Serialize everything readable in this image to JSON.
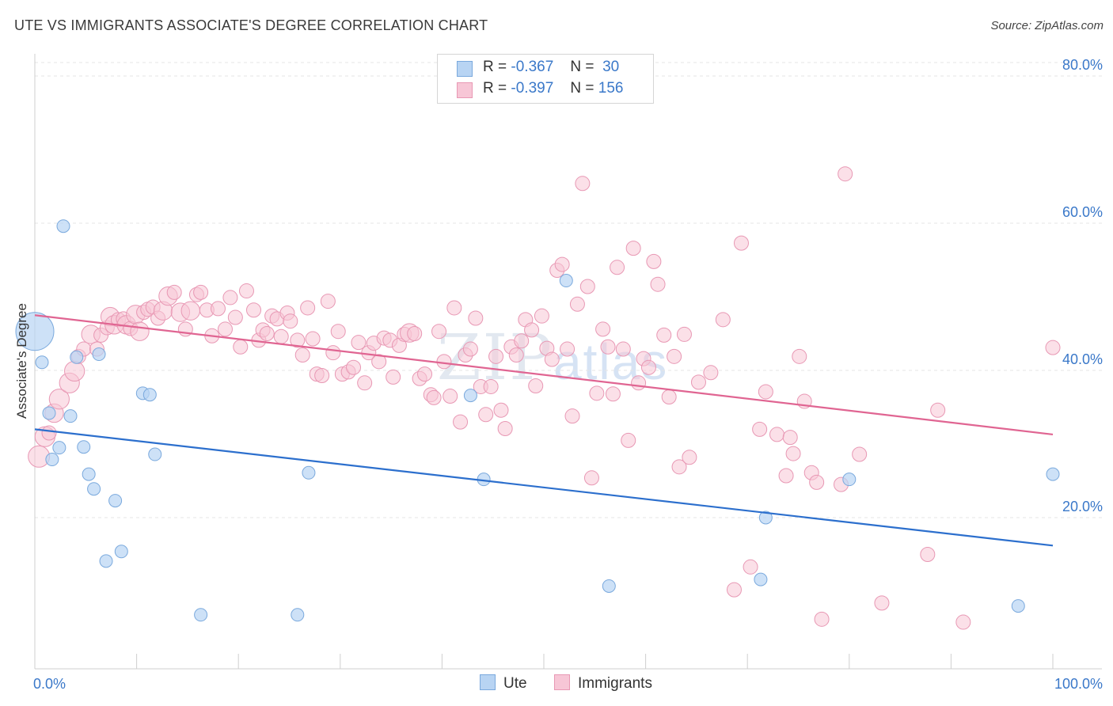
{
  "title": "UTE VS IMMIGRANTS ASSOCIATE'S DEGREE CORRELATION CHART",
  "source": "Source: ZipAtlas.com",
  "watermark": {
    "zip": "ZIP",
    "atlas": "atlas"
  },
  "legend": {
    "r_label": "R =",
    "n_label": "N =",
    "ute": {
      "r": "-0.367",
      "n": "30"
    },
    "immigrants": {
      "r": "-0.397",
      "n": "156"
    }
  },
  "bottom_legend": {
    "ute": "Ute",
    "immigrants": "Immigrants"
  },
  "colors": {
    "ute_fill": "#b8d4f3",
    "ute_stroke": "#7aa9dd",
    "ute_line": "#2c6fcd",
    "imm_fill": "#f7c6d6",
    "imm_stroke": "#e898b4",
    "imm_line": "#e06592",
    "tick_label": "#3a78c9",
    "grid": "#e4e4e4"
  },
  "chart_data": {
    "type": "scatter",
    "title": "UTE VS IMMIGRANTS ASSOCIATE'S DEGREE CORRELATION CHART",
    "xlabel": "",
    "ylabel": "Associate's Degree",
    "xlim": [
      0,
      100
    ],
    "ylim": [
      0,
      82
    ],
    "x_tick_labels": [
      "0.0%",
      "100.0%"
    ],
    "y_ticks": [
      20,
      40,
      60,
      80
    ],
    "y_tick_labels": [
      "20.0%",
      "40.0%",
      "60.0%",
      "80.0%"
    ],
    "grid": true,
    "legend_position": "top-center",
    "series": [
      {
        "name": "Ute",
        "R": -0.367,
        "N": 30,
        "trend": {
          "x": [
            0,
            100
          ],
          "y": [
            32.0,
            16.2
          ]
        },
        "points": [
          {
            "x": 0,
            "y": 45.3,
            "s": 3
          },
          {
            "x": 0.7,
            "y": 41.1,
            "s": 1
          },
          {
            "x": 2.8,
            "y": 59.6,
            "s": 1
          },
          {
            "x": 1.4,
            "y": 34.2,
            "s": 1
          },
          {
            "x": 3.5,
            "y": 33.8,
            "s": 1
          },
          {
            "x": 2.4,
            "y": 29.5,
            "s": 1
          },
          {
            "x": 1.7,
            "y": 27.9,
            "s": 1
          },
          {
            "x": 4.1,
            "y": 41.8,
            "s": 1
          },
          {
            "x": 6.3,
            "y": 42.2,
            "s": 1
          },
          {
            "x": 4.8,
            "y": 29.6,
            "s": 1
          },
          {
            "x": 5.3,
            "y": 25.9,
            "s": 1
          },
          {
            "x": 5.8,
            "y": 23.9,
            "s": 1
          },
          {
            "x": 7.9,
            "y": 22.3,
            "s": 1
          },
          {
            "x": 10.6,
            "y": 36.9,
            "s": 1
          },
          {
            "x": 11.3,
            "y": 36.7,
            "s": 1
          },
          {
            "x": 11.8,
            "y": 28.6,
            "s": 1
          },
          {
            "x": 7.0,
            "y": 14.1,
            "s": 1
          },
          {
            "x": 8.5,
            "y": 15.4,
            "s": 1
          },
          {
            "x": 16.3,
            "y": 6.8,
            "s": 1
          },
          {
            "x": 25.8,
            "y": 6.8,
            "s": 1
          },
          {
            "x": 26.9,
            "y": 26.1,
            "s": 1
          },
          {
            "x": 42.8,
            "y": 36.6,
            "s": 1
          },
          {
            "x": 44.1,
            "y": 25.2,
            "s": 1
          },
          {
            "x": 52.2,
            "y": 52.2,
            "s": 1
          },
          {
            "x": 56.4,
            "y": 10.7,
            "s": 1
          },
          {
            "x": 71.3,
            "y": 11.6,
            "s": 1
          },
          {
            "x": 71.8,
            "y": 20.0,
            "s": 1
          },
          {
            "x": 80.0,
            "y": 25.2,
            "s": 1
          },
          {
            "x": 96.6,
            "y": 8.0,
            "s": 1
          },
          {
            "x": 100,
            "y": 25.9,
            "s": 1
          }
        ]
      },
      {
        "name": "Immigrants",
        "R": -0.397,
        "N": 156,
        "trend": {
          "x": [
            0,
            100
          ],
          "y": [
            47.5,
            31.3
          ]
        },
        "points": [
          {
            "x": 0.4,
            "y": 28.3,
            "s": 1.5
          },
          {
            "x": 1.0,
            "y": 31.0,
            "s": 1.4
          },
          {
            "x": 1.4,
            "y": 31.5,
            "s": 1
          },
          {
            "x": 1.9,
            "y": 34.2,
            "s": 1.3
          },
          {
            "x": 2.4,
            "y": 36.1,
            "s": 1.4
          },
          {
            "x": 3.4,
            "y": 38.3,
            "s": 1.4
          },
          {
            "x": 3.9,
            "y": 39.9,
            "s": 1.4
          },
          {
            "x": 4.3,
            "y": 41.9,
            "s": 1
          },
          {
            "x": 4.8,
            "y": 42.9,
            "s": 1
          },
          {
            "x": 5.5,
            "y": 44.9,
            "s": 1.3
          },
          {
            "x": 6.1,
            "y": 42.9,
            "s": 1
          },
          {
            "x": 6.5,
            "y": 44.8,
            "s": 1
          },
          {
            "x": 7.1,
            "y": 45.8,
            "s": 1
          },
          {
            "x": 7.4,
            "y": 47.3,
            "s": 1.3
          },
          {
            "x": 7.8,
            "y": 46.2,
            "s": 1.3
          },
          {
            "x": 8.2,
            "y": 46.9,
            "s": 1
          },
          {
            "x": 8.7,
            "y": 47.0,
            "s": 1
          },
          {
            "x": 9.0,
            "y": 46.2,
            "s": 1.3
          },
          {
            "x": 9.4,
            "y": 45.7,
            "s": 1
          },
          {
            "x": 9.9,
            "y": 47.6,
            "s": 1.3
          },
          {
            "x": 10.3,
            "y": 45.3,
            "s": 1.3
          },
          {
            "x": 10.7,
            "y": 47.9,
            "s": 1
          },
          {
            "x": 11.1,
            "y": 48.3,
            "s": 1
          },
          {
            "x": 11.6,
            "y": 48.6,
            "s": 1
          },
          {
            "x": 12.1,
            "y": 47.1,
            "s": 1
          },
          {
            "x": 12.6,
            "y": 48.1,
            "s": 1.3
          },
          {
            "x": 13.1,
            "y": 50.1,
            "s": 1.3
          },
          {
            "x": 13.7,
            "y": 50.6,
            "s": 1
          },
          {
            "x": 14.3,
            "y": 47.9,
            "s": 1.3
          },
          {
            "x": 14.8,
            "y": 45.6,
            "s": 1
          },
          {
            "x": 15.3,
            "y": 48.1,
            "s": 1.3
          },
          {
            "x": 15.9,
            "y": 50.3,
            "s": 1
          },
          {
            "x": 16.3,
            "y": 50.6,
            "s": 1
          },
          {
            "x": 16.9,
            "y": 48.2,
            "s": 1
          },
          {
            "x": 17.4,
            "y": 44.7,
            "s": 1
          },
          {
            "x": 18.0,
            "y": 48.4,
            "s": 1
          },
          {
            "x": 18.7,
            "y": 45.6,
            "s": 1
          },
          {
            "x": 19.2,
            "y": 49.9,
            "s": 1
          },
          {
            "x": 19.7,
            "y": 47.2,
            "s": 1
          },
          {
            "x": 20.2,
            "y": 43.2,
            "s": 1
          },
          {
            "x": 20.8,
            "y": 50.8,
            "s": 1
          },
          {
            "x": 21.5,
            "y": 48.2,
            "s": 1
          },
          {
            "x": 22.0,
            "y": 44.1,
            "s": 1
          },
          {
            "x": 22.4,
            "y": 45.5,
            "s": 1
          },
          {
            "x": 22.8,
            "y": 45.0,
            "s": 1
          },
          {
            "x": 23.3,
            "y": 47.4,
            "s": 1
          },
          {
            "x": 23.8,
            "y": 47.0,
            "s": 1
          },
          {
            "x": 24.2,
            "y": 44.6,
            "s": 1
          },
          {
            "x": 24.8,
            "y": 47.8,
            "s": 1
          },
          {
            "x": 25.1,
            "y": 46.7,
            "s": 1
          },
          {
            "x": 25.8,
            "y": 44.1,
            "s": 1
          },
          {
            "x": 26.3,
            "y": 42.1,
            "s": 1
          },
          {
            "x": 26.8,
            "y": 48.5,
            "s": 1
          },
          {
            "x": 27.3,
            "y": 44.3,
            "s": 1
          },
          {
            "x": 27.7,
            "y": 39.5,
            "s": 1
          },
          {
            "x": 28.2,
            "y": 39.3,
            "s": 1
          },
          {
            "x": 28.8,
            "y": 49.4,
            "s": 1
          },
          {
            "x": 29.3,
            "y": 42.4,
            "s": 1
          },
          {
            "x": 29.8,
            "y": 45.3,
            "s": 1
          },
          {
            "x": 30.2,
            "y": 39.5,
            "s": 1
          },
          {
            "x": 30.8,
            "y": 39.8,
            "s": 1
          },
          {
            "x": 31.3,
            "y": 40.4,
            "s": 1
          },
          {
            "x": 31.8,
            "y": 43.8,
            "s": 1
          },
          {
            "x": 32.4,
            "y": 38.3,
            "s": 1
          },
          {
            "x": 32.8,
            "y": 42.4,
            "s": 1
          },
          {
            "x": 33.3,
            "y": 43.7,
            "s": 1
          },
          {
            "x": 33.8,
            "y": 41.2,
            "s": 1
          },
          {
            "x": 34.3,
            "y": 44.4,
            "s": 1
          },
          {
            "x": 34.9,
            "y": 44.1,
            "s": 1
          },
          {
            "x": 35.2,
            "y": 39.1,
            "s": 1
          },
          {
            "x": 35.8,
            "y": 43.4,
            "s": 1
          },
          {
            "x": 36.3,
            "y": 44.9,
            "s": 1
          },
          {
            "x": 36.8,
            "y": 45.1,
            "s": 1.3
          },
          {
            "x": 37.3,
            "y": 45.0,
            "s": 1
          },
          {
            "x": 37.8,
            "y": 38.9,
            "s": 1
          },
          {
            "x": 38.3,
            "y": 39.5,
            "s": 1
          },
          {
            "x": 38.9,
            "y": 36.7,
            "s": 1
          },
          {
            "x": 39.2,
            "y": 36.3,
            "s": 1
          },
          {
            "x": 39.7,
            "y": 45.3,
            "s": 1
          },
          {
            "x": 40.2,
            "y": 41.2,
            "s": 1
          },
          {
            "x": 40.8,
            "y": 36.5,
            "s": 1
          },
          {
            "x": 41.2,
            "y": 48.5,
            "s": 1
          },
          {
            "x": 41.8,
            "y": 33.0,
            "s": 1
          },
          {
            "x": 42.3,
            "y": 42.1,
            "s": 1
          },
          {
            "x": 42.8,
            "y": 42.9,
            "s": 1
          },
          {
            "x": 43.3,
            "y": 47.1,
            "s": 1
          },
          {
            "x": 43.8,
            "y": 37.8,
            "s": 1
          },
          {
            "x": 44.3,
            "y": 34.0,
            "s": 1
          },
          {
            "x": 44.8,
            "y": 37.8,
            "s": 1
          },
          {
            "x": 45.3,
            "y": 41.9,
            "s": 1
          },
          {
            "x": 45.8,
            "y": 34.6,
            "s": 1
          },
          {
            "x": 46.2,
            "y": 32.1,
            "s": 1
          },
          {
            "x": 46.8,
            "y": 43.2,
            "s": 1
          },
          {
            "x": 47.3,
            "y": 42.1,
            "s": 1
          },
          {
            "x": 47.8,
            "y": 44.0,
            "s": 1
          },
          {
            "x": 48.2,
            "y": 46.9,
            "s": 1
          },
          {
            "x": 48.8,
            "y": 45.5,
            "s": 1
          },
          {
            "x": 49.2,
            "y": 37.9,
            "s": 1
          },
          {
            "x": 49.8,
            "y": 47.4,
            "s": 1
          },
          {
            "x": 50.3,
            "y": 43.0,
            "s": 1
          },
          {
            "x": 50.8,
            "y": 41.5,
            "s": 1
          },
          {
            "x": 51.3,
            "y": 53.6,
            "s": 1
          },
          {
            "x": 51.8,
            "y": 54.4,
            "s": 1
          },
          {
            "x": 52.3,
            "y": 42.9,
            "s": 1
          },
          {
            "x": 52.8,
            "y": 33.8,
            "s": 1
          },
          {
            "x": 53.3,
            "y": 49.0,
            "s": 1
          },
          {
            "x": 53.8,
            "y": 65.4,
            "s": 1
          },
          {
            "x": 54.3,
            "y": 51.4,
            "s": 1
          },
          {
            "x": 54.7,
            "y": 25.4,
            "s": 1
          },
          {
            "x": 55.2,
            "y": 36.9,
            "s": 1
          },
          {
            "x": 55.8,
            "y": 45.6,
            "s": 1
          },
          {
            "x": 56.3,
            "y": 43.2,
            "s": 1
          },
          {
            "x": 56.8,
            "y": 36.8,
            "s": 1
          },
          {
            "x": 57.2,
            "y": 54.0,
            "s": 1
          },
          {
            "x": 57.8,
            "y": 42.9,
            "s": 1
          },
          {
            "x": 58.3,
            "y": 30.5,
            "s": 1
          },
          {
            "x": 58.8,
            "y": 56.6,
            "s": 1
          },
          {
            "x": 59.3,
            "y": 38.3,
            "s": 1
          },
          {
            "x": 59.8,
            "y": 41.6,
            "s": 1
          },
          {
            "x": 60.3,
            "y": 40.4,
            "s": 1
          },
          {
            "x": 60.8,
            "y": 54.8,
            "s": 1
          },
          {
            "x": 61.2,
            "y": 51.7,
            "s": 1
          },
          {
            "x": 61.8,
            "y": 44.8,
            "s": 1
          },
          {
            "x": 62.3,
            "y": 36.4,
            "s": 1
          },
          {
            "x": 62.8,
            "y": 41.9,
            "s": 1
          },
          {
            "x": 63.3,
            "y": 26.9,
            "s": 1
          },
          {
            "x": 63.8,
            "y": 44.9,
            "s": 1
          },
          {
            "x": 64.3,
            "y": 28.2,
            "s": 1
          },
          {
            "x": 65.2,
            "y": 38.4,
            "s": 1
          },
          {
            "x": 66.4,
            "y": 39.7,
            "s": 1
          },
          {
            "x": 67.6,
            "y": 46.9,
            "s": 1
          },
          {
            "x": 69.4,
            "y": 57.3,
            "s": 1
          },
          {
            "x": 68.7,
            "y": 10.2,
            "s": 1
          },
          {
            "x": 70.3,
            "y": 13.3,
            "s": 1
          },
          {
            "x": 71.2,
            "y": 32.0,
            "s": 1
          },
          {
            "x": 71.8,
            "y": 37.1,
            "s": 1
          },
          {
            "x": 72.9,
            "y": 31.3,
            "s": 1
          },
          {
            "x": 73.8,
            "y": 25.7,
            "s": 1
          },
          {
            "x": 74.2,
            "y": 30.9,
            "s": 1
          },
          {
            "x": 74.5,
            "y": 28.7,
            "s": 1
          },
          {
            "x": 75.1,
            "y": 41.9,
            "s": 1
          },
          {
            "x": 75.6,
            "y": 35.8,
            "s": 1
          },
          {
            "x": 76.3,
            "y": 26.1,
            "s": 1
          },
          {
            "x": 76.8,
            "y": 24.8,
            "s": 1
          },
          {
            "x": 77.3,
            "y": 6.2,
            "s": 1
          },
          {
            "x": 79.2,
            "y": 24.5,
            "s": 1
          },
          {
            "x": 79.6,
            "y": 66.7,
            "s": 1
          },
          {
            "x": 81.0,
            "y": 28.6,
            "s": 1
          },
          {
            "x": 83.2,
            "y": 8.4,
            "s": 1
          },
          {
            "x": 87.7,
            "y": 15.0,
            "s": 1
          },
          {
            "x": 88.7,
            "y": 34.6,
            "s": 1
          },
          {
            "x": 91.2,
            "y": 5.8,
            "s": 1
          },
          {
            "x": 100,
            "y": 43.1,
            "s": 1
          }
        ]
      }
    ]
  }
}
